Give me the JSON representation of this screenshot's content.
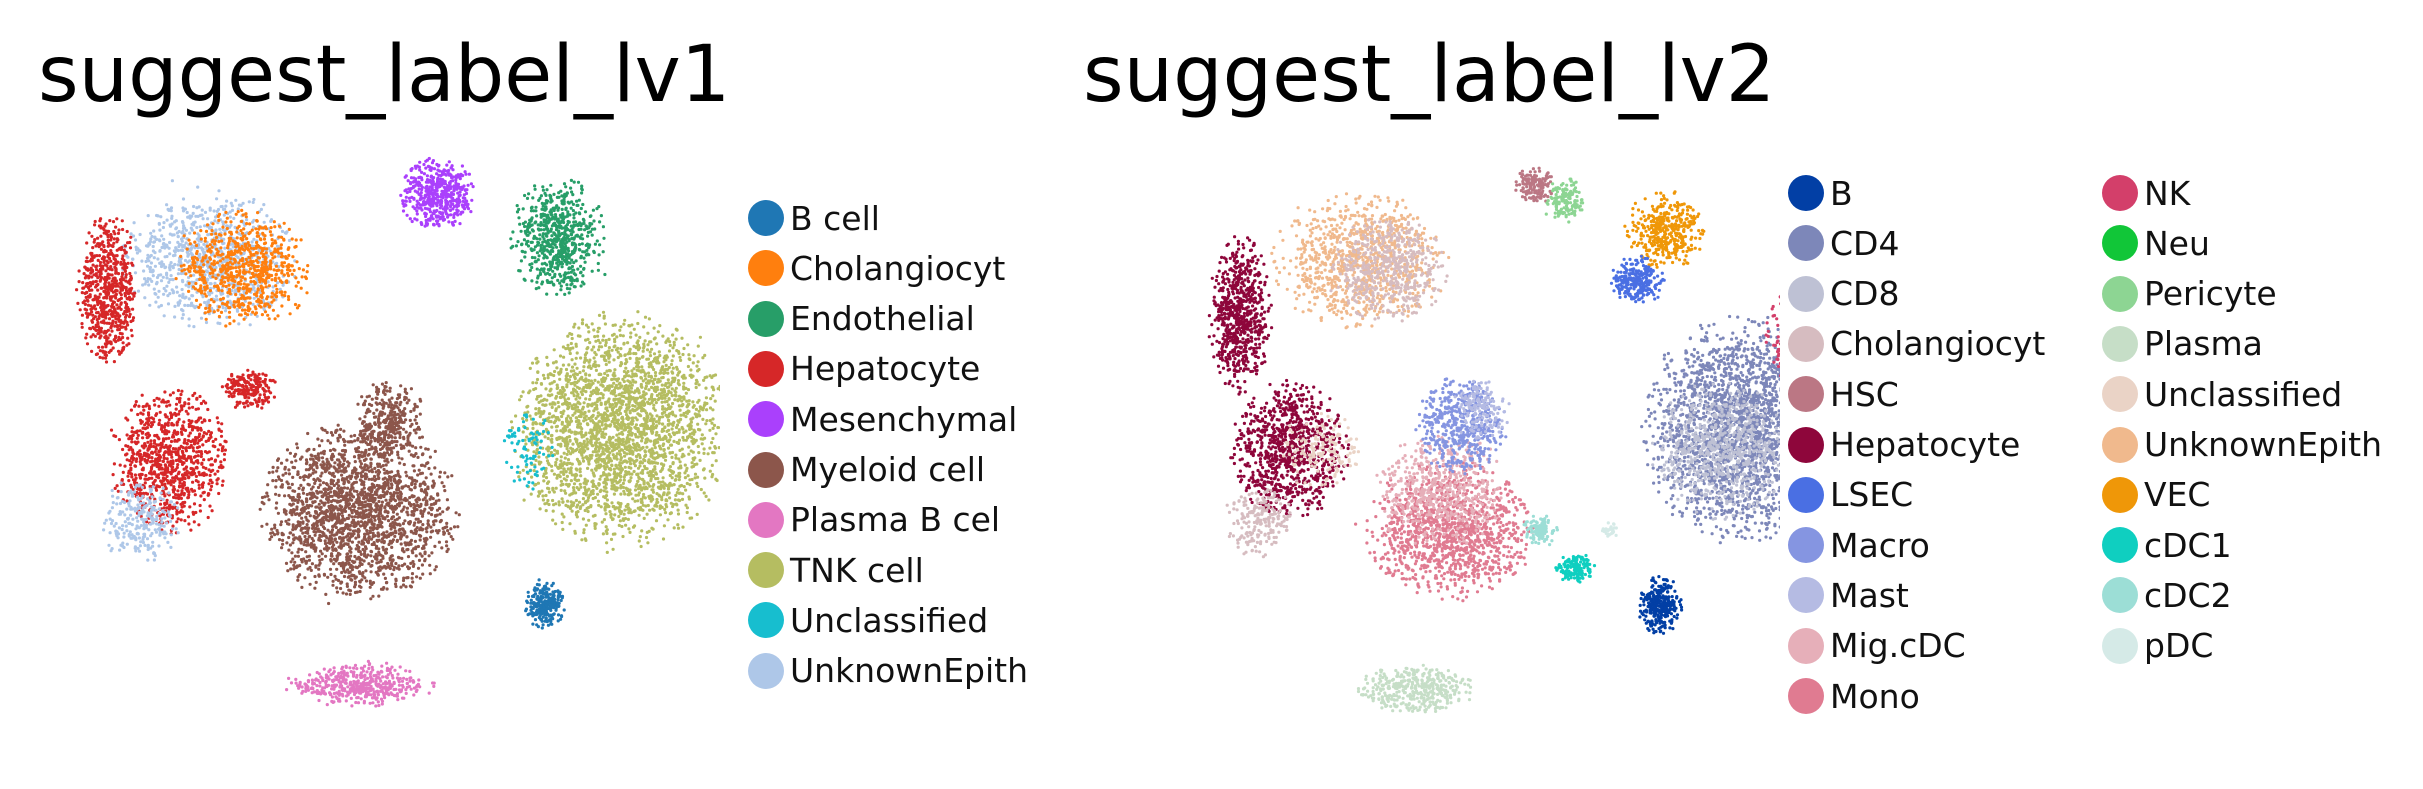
{
  "chart_data": [
    {
      "type": "scatter",
      "title": "suggest_label_lv1",
      "xlabel": "",
      "ylabel": "",
      "legend": "right",
      "series": [
        {
          "name": "B cell",
          "color": "#1f77b4"
        },
        {
          "name": "Cholangiocyt",
          "color": "#ff7f0e"
        },
        {
          "name": "Endothelial",
          "color": "#279e68"
        },
        {
          "name": "Hepatocyte",
          "color": "#d62728"
        },
        {
          "name": "Mesenchymal",
          "color": "#aa40fc"
        },
        {
          "name": "Myeloid cell",
          "color": "#8c564b"
        },
        {
          "name": "Plasma B cel",
          "color": "#e377c2"
        },
        {
          "name": "TNK cell",
          "color": "#b5bd61"
        },
        {
          "name": "Unclassified",
          "color": "#17becf"
        },
        {
          "name": "UnknownEpith",
          "color": "#aec7e8"
        }
      ]
    },
    {
      "type": "scatter",
      "title": "suggest_label_lv2",
      "xlabel": "",
      "ylabel": "",
      "legend": "right",
      "series": [
        {
          "name": "B",
          "color": "#023fa5"
        },
        {
          "name": "CD4",
          "color": "#7d87b9"
        },
        {
          "name": "CD8",
          "color": "#bec1d4"
        },
        {
          "name": "Cholangiocyt",
          "color": "#d6bcc0"
        },
        {
          "name": "HSC",
          "color": "#bb7784"
        },
        {
          "name": "Hepatocyte",
          "color": "#8e063b"
        },
        {
          "name": "LSEC",
          "color": "#4a6fe3"
        },
        {
          "name": "Macro",
          "color": "#8595e1"
        },
        {
          "name": "Mast",
          "color": "#b5bbe3"
        },
        {
          "name": "Mig.cDC",
          "color": "#e6afb9"
        },
        {
          "name": "Mono",
          "color": "#e07b91"
        },
        {
          "name": "NK",
          "color": "#d33f6a"
        },
        {
          "name": "Neu",
          "color": "#11c638"
        },
        {
          "name": "Pericyte",
          "color": "#8dd593"
        },
        {
          "name": "Plasma",
          "color": "#c6dec7"
        },
        {
          "name": "Unclassified",
          "color": "#ead3c6"
        },
        {
          "name": "UnknownEpith",
          "color": "#f0b98d"
        },
        {
          "name": "VEC",
          "color": "#ef9708"
        },
        {
          "name": "cDC1",
          "color": "#0fcfc0"
        },
        {
          "name": "cDC2",
          "color": "#9cded6"
        },
        {
          "name": "pDC",
          "color": "#d5eae7"
        }
      ]
    }
  ]
}
